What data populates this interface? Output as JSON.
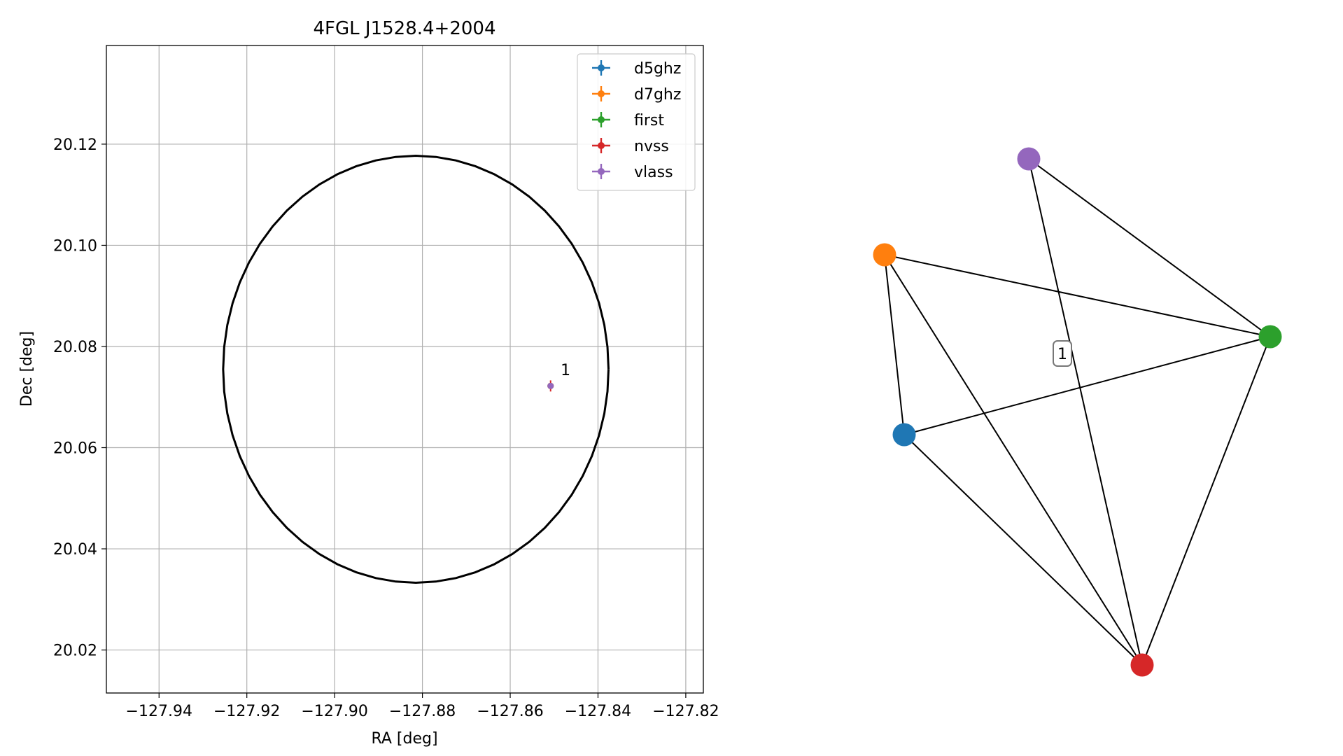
{
  "figure": {
    "background": "#ffffff"
  },
  "chart_data": [
    {
      "type": "scatter",
      "title": "4FGL J1528.4+2004",
      "xlabel": "RA [deg]",
      "ylabel": "Dec [deg]",
      "xlim": [
        -127.952,
        -127.816
      ],
      "ylim": [
        20.0115,
        20.1395
      ],
      "x_ticks": [
        -127.94,
        -127.92,
        -127.9,
        -127.88,
        -127.86,
        -127.84,
        -127.82
      ],
      "x_tick_labels": [
        "−127.94",
        "−127.92",
        "−127.90",
        "−127.88",
        "−127.86",
        "−127.84",
        "−127.82"
      ],
      "y_ticks": [
        20.02,
        20.04,
        20.06,
        20.08,
        20.1,
        20.12
      ],
      "y_tick_labels": [
        "20.02",
        "20.04",
        "20.06",
        "20.08",
        "20.10",
        "20.12"
      ],
      "grid": true,
      "legend_position": "top-right",
      "error_ellipse": {
        "center": [
          -127.8815,
          20.0755
        ],
        "ra_semi_axis": 0.0439,
        "dec_semi_axis": 0.0422,
        "color": "#000000"
      },
      "series": [
        {
          "name": "d5ghz",
          "color": "#1f77b4",
          "x": [
            -127.8508
          ],
          "y": [
            20.0722
          ],
          "xerr": [
            0.0003
          ],
          "yerr": [
            0.0005
          ]
        },
        {
          "name": "d7ghz",
          "color": "#ff7f0e",
          "x": [
            -127.8508
          ],
          "y": [
            20.0722
          ],
          "xerr": [
            0.0003
          ],
          "yerr": [
            0.0005
          ]
        },
        {
          "name": "first",
          "color": "#2ca02c",
          "x": [
            -127.8508
          ],
          "y": [
            20.0722
          ],
          "xerr": [
            0.0003
          ],
          "yerr": [
            0.0005
          ]
        },
        {
          "name": "nvss",
          "color": "#d62728",
          "x": [
            -127.8508
          ],
          "y": [
            20.0722
          ],
          "xerr": [
            0.0004
          ],
          "yerr": [
            0.0011
          ]
        },
        {
          "name": "vlass",
          "color": "#9467bd",
          "x": [
            -127.8508
          ],
          "y": [
            20.0722
          ],
          "xerr": [
            0.0002
          ],
          "yerr": [
            0.0003
          ]
        }
      ],
      "annotations": [
        {
          "text": "1",
          "x": -127.8485,
          "y": 20.0738
        }
      ]
    },
    {
      "type": "network",
      "nodes": [
        {
          "id": "d5ghz",
          "color": "#1f77b4"
        },
        {
          "id": "d7ghz",
          "color": "#ff7f0e"
        },
        {
          "id": "first",
          "color": "#2ca02c"
        },
        {
          "id": "nvss",
          "color": "#d62728"
        },
        {
          "id": "vlass",
          "color": "#9467bd"
        }
      ],
      "edges": [
        [
          "d7ghz",
          "first"
        ],
        [
          "d7ghz",
          "d5ghz"
        ],
        [
          "d7ghz",
          "nvss"
        ],
        [
          "vlass",
          "first"
        ],
        [
          "vlass",
          "nvss"
        ],
        [
          "d5ghz",
          "first"
        ],
        [
          "d5ghz",
          "nvss"
        ],
        [
          "first",
          "nvss"
        ]
      ],
      "cluster_label": "1"
    }
  ]
}
